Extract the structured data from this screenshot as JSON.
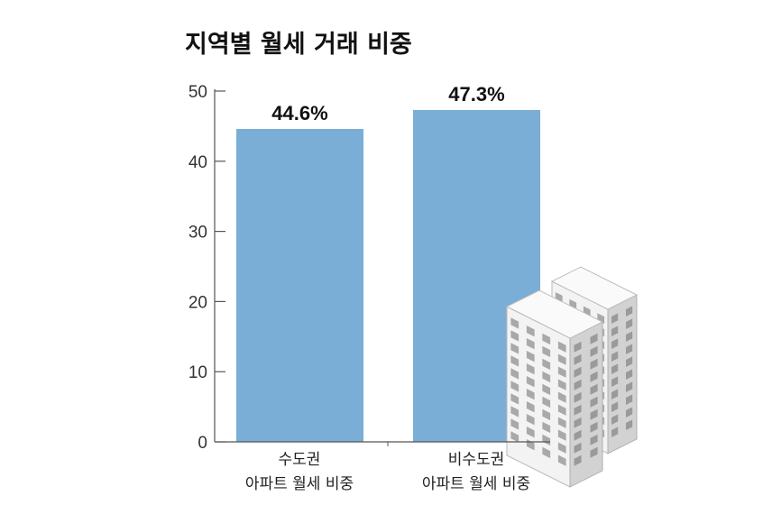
{
  "chart_data": {
    "type": "bar",
    "title": "지역별 월세 거래 비중",
    "categories": [
      [
        "수도권",
        "아파트 월세 비중"
      ],
      [
        "비수도권",
        "아파트 월세 비중"
      ]
    ],
    "values": [
      44.6,
      47.3
    ],
    "value_labels": [
      "44.6%",
      "47.3%"
    ],
    "unit": "%",
    "ylim": [
      0,
      50
    ],
    "yticks": [
      0,
      10,
      20,
      30,
      40,
      50
    ],
    "grid": false,
    "legend": "none",
    "colors": {
      "bar": "#7aaed6",
      "axis": "#555555",
      "text": "#111111"
    },
    "decoration": "apartment-buildings-icon"
  }
}
